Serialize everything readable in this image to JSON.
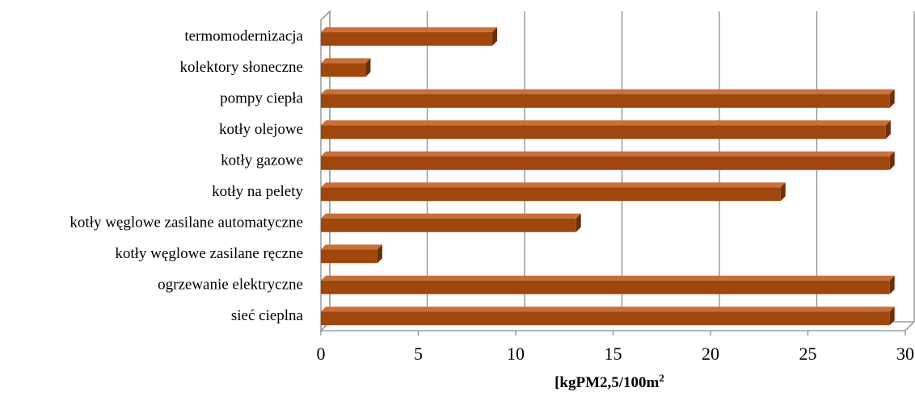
{
  "chart_data": {
    "type": "bar",
    "orientation": "horizontal",
    "style": "3d",
    "categories": [
      "termomodernizacja",
      "kolektory słoneczne",
      "pompy ciepła",
      "kotły olejowe",
      "kotły gazowe",
      "kotły na pelety",
      "kotły węglowe zasilane automatyczne",
      "kotły węglowe zasilane ręczne",
      "ogrzewanie elektryczne",
      "sieć cieplna"
    ],
    "values": [
      8.8,
      2.3,
      29.2,
      29.0,
      29.2,
      23.6,
      13.1,
      2.9,
      29.2,
      29.2
    ],
    "xlim": [
      0,
      30
    ],
    "xticks": [
      "0",
      "5",
      "10",
      "15",
      "20",
      "25",
      "30"
    ],
    "xlabel": "[kgPM2,5/100m",
    "xlabel_sup": "2",
    "grid": true,
    "legend": "none",
    "colors": {
      "bar_front": "#A0470E",
      "bar_top": "#C8703A",
      "bar_side": "#6E2F08",
      "grid": "#8C8C8C"
    }
  }
}
